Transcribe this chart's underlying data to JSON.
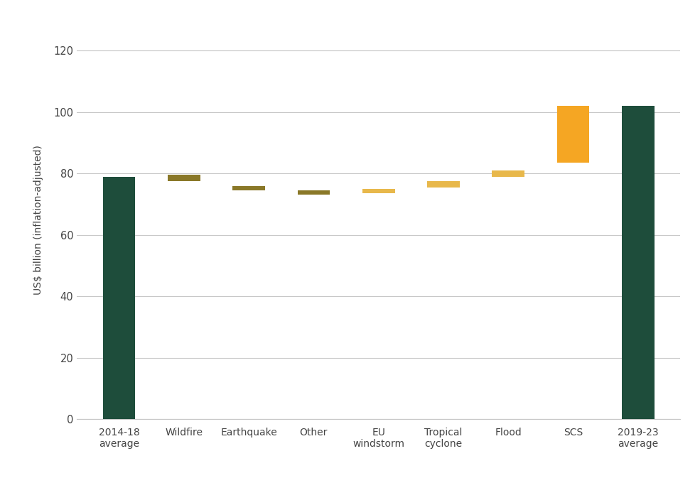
{
  "categories": [
    "2014-18\naverage",
    "Wildfire",
    "Earthquake",
    "Other",
    "EU\nwindstorm",
    "Tropical\ncyclone",
    "Flood",
    "SCS",
    "2019-23\naverage"
  ],
  "bar_bottoms": [
    0,
    77.5,
    74.5,
    73.0,
    73.5,
    75.5,
    79.0,
    83.5,
    0
  ],
  "bar_heights": [
    79.0,
    2.0,
    1.5,
    1.5,
    1.5,
    2.0,
    2.0,
    18.5,
    102.0
  ],
  "bar_colors": [
    "#1e4d3b",
    "#8a7828",
    "#8a7828",
    "#8a7828",
    "#e8b84b",
    "#e8b84b",
    "#e8b84b",
    "#f5a623",
    "#1e4d3b"
  ],
  "ylabel": "US$ billion (inflation-adjusted)",
  "ylim": [
    0,
    130
  ],
  "yticks": [
    0,
    20,
    40,
    60,
    80,
    100,
    120
  ],
  "background_color": "#ffffff",
  "grid_color": "#c8c8c8",
  "bar_width": 0.5,
  "figsize": [
    9.85,
    6.73
  ],
  "dpi": 100
}
